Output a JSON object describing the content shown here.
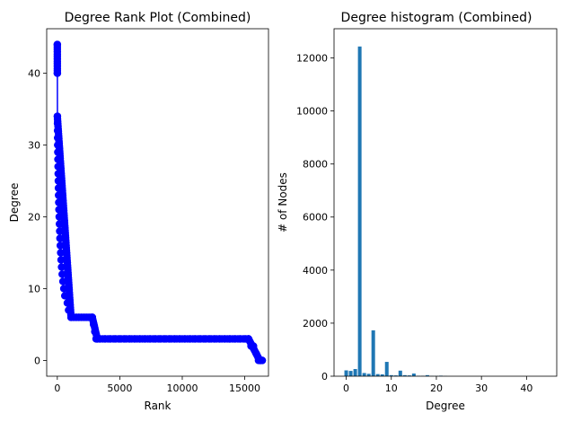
{
  "chart_data": [
    {
      "type": "line",
      "title": "Degree Rank Plot (Combined)",
      "xlabel": "Rank",
      "ylabel": "Degree",
      "xlim": [
        -850,
        16900
      ],
      "ylim": [
        -2.2,
        46.2
      ],
      "xticks": [
        0,
        5000,
        10000,
        15000
      ],
      "xtick_labels": [
        "0",
        "5000",
        "10000",
        "15000"
      ],
      "yticks": [
        0,
        10,
        20,
        30,
        40
      ],
      "ytick_labels": [
        "0",
        "10",
        "20",
        "30",
        "40"
      ],
      "color": "#0000ff",
      "marker": "o",
      "segments": [
        {
          "rank_start": 0,
          "rank_end": 2,
          "degree_start": 44,
          "degree_end": 40
        },
        {
          "rank_start": 2,
          "rank_end": 1100,
          "degree_start": 34,
          "degree_end": 6
        },
        {
          "rank_start": 1100,
          "rank_end": 2800,
          "degree_start": 6,
          "degree_end": 6
        },
        {
          "rank_start": 2800,
          "rank_end": 3200,
          "degree_start": 6,
          "degree_end": 3
        },
        {
          "rank_start": 3200,
          "rank_end": 15300,
          "degree_start": 3,
          "degree_end": 3
        },
        {
          "rank_start": 15300,
          "rank_end": 16200,
          "degree_start": 3,
          "degree_end": 0
        },
        {
          "rank_start": 16200,
          "rank_end": 16400,
          "degree_start": 0,
          "degree_end": 0
        }
      ],
      "points": [
        [
          0,
          44
        ],
        [
          5,
          40
        ],
        [
          10,
          34
        ],
        [
          15,
          33
        ],
        [
          20,
          32
        ],
        [
          25,
          31
        ],
        [
          30,
          30
        ],
        [
          40,
          29
        ],
        [
          50,
          28
        ],
        [
          60,
          27
        ],
        [
          70,
          26
        ],
        [
          80,
          25
        ],
        [
          90,
          24
        ],
        [
          100,
          23
        ],
        [
          115,
          22
        ],
        [
          130,
          21
        ],
        [
          150,
          20
        ],
        [
          170,
          19
        ],
        [
          190,
          18
        ],
        [
          210,
          17
        ],
        [
          240,
          16
        ],
        [
          270,
          15
        ],
        [
          300,
          14
        ],
        [
          340,
          13
        ],
        [
          390,
          12
        ],
        [
          450,
          11
        ],
        [
          520,
          10
        ],
        [
          600,
          9
        ],
        [
          700,
          9
        ],
        [
          800,
          8
        ],
        [
          900,
          7
        ],
        [
          1000,
          7
        ],
        [
          1100,
          6
        ],
        [
          1300,
          6
        ],
        [
          1500,
          6
        ],
        [
          1700,
          6
        ],
        [
          1900,
          6
        ],
        [
          2100,
          6
        ],
        [
          2300,
          6
        ],
        [
          2500,
          6
        ],
        [
          2700,
          6
        ],
        [
          2800,
          6
        ],
        [
          2900,
          5
        ],
        [
          3000,
          4
        ],
        [
          3100,
          3
        ],
        [
          3400,
          3
        ],
        [
          3800,
          3
        ],
        [
          4200,
          3
        ],
        [
          4600,
          3
        ],
        [
          5000,
          3
        ],
        [
          5400,
          3
        ],
        [
          5800,
          3
        ],
        [
          6200,
          3
        ],
        [
          6600,
          3
        ],
        [
          7000,
          3
        ],
        [
          7400,
          3
        ],
        [
          7800,
          3
        ],
        [
          8200,
          3
        ],
        [
          8600,
          3
        ],
        [
          9000,
          3
        ],
        [
          9400,
          3
        ],
        [
          9800,
          3
        ],
        [
          10200,
          3
        ],
        [
          10600,
          3
        ],
        [
          11000,
          3
        ],
        [
          11400,
          3
        ],
        [
          11800,
          3
        ],
        [
          12200,
          3
        ],
        [
          12600,
          3
        ],
        [
          13000,
          3
        ],
        [
          13400,
          3
        ],
        [
          13800,
          3
        ],
        [
          14200,
          3
        ],
        [
          14600,
          3
        ],
        [
          15000,
          3
        ],
        [
          15300,
          3
        ],
        [
          15500,
          2
        ],
        [
          15700,
          2
        ],
        [
          15900,
          1
        ],
        [
          16100,
          0
        ],
        [
          16200,
          0
        ],
        [
          16300,
          0
        ],
        [
          16400,
          0
        ]
      ]
    },
    {
      "type": "bar",
      "title": "Degree histogram (Combined)",
      "xlabel": "Degree",
      "ylabel": "# of Nodes",
      "xlim": [
        -2.7,
        46.7
      ],
      "ylim": [
        0,
        13100
      ],
      "xticks": [
        0,
        10,
        20,
        30,
        40
      ],
      "xtick_labels": [
        "0",
        "10",
        "20",
        "30",
        "40"
      ],
      "yticks": [
        0,
        2000,
        4000,
        6000,
        8000,
        10000,
        12000
      ],
      "ytick_labels": [
        "0",
        "2000",
        "4000",
        "6000",
        "8000",
        "10000",
        "12000"
      ],
      "color": "#1f77b4",
      "bar_width": 0.8,
      "bars": [
        {
          "degree": 0,
          "count": 220
        },
        {
          "degree": 1,
          "count": 200
        },
        {
          "degree": 2,
          "count": 270
        },
        {
          "degree": 3,
          "count": 12430
        },
        {
          "degree": 4,
          "count": 120
        },
        {
          "degree": 5,
          "count": 90
        },
        {
          "degree": 6,
          "count": 1730
        },
        {
          "degree": 7,
          "count": 80
        },
        {
          "degree": 8,
          "count": 70
        },
        {
          "degree": 9,
          "count": 540
        },
        {
          "degree": 10,
          "count": 40
        },
        {
          "degree": 11,
          "count": 30
        },
        {
          "degree": 12,
          "count": 210
        },
        {
          "degree": 13,
          "count": 40
        },
        {
          "degree": 14,
          "count": 30
        },
        {
          "degree": 15,
          "count": 100
        },
        {
          "degree": 16,
          "count": 15
        },
        {
          "degree": 17,
          "count": 15
        },
        {
          "degree": 18,
          "count": 40
        },
        {
          "degree": 19,
          "count": 10
        },
        {
          "degree": 20,
          "count": 10
        },
        {
          "degree": 21,
          "count": 20
        },
        {
          "degree": 22,
          "count": 5
        }
      ]
    }
  ]
}
